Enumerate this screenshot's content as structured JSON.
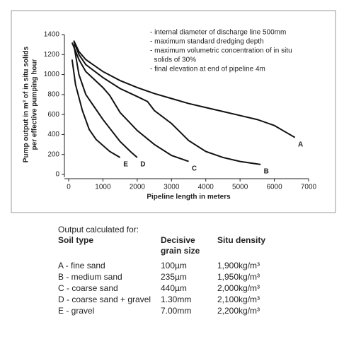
{
  "chart_data": {
    "type": "line",
    "ylabel": [
      "Pump output in m³ of in situ solids",
      "per effective pumping hour"
    ],
    "xlabel": "Pipeline length in meters",
    "notes": [
      "- internal diameter of discharge line 500mm",
      "- maximum standard dredging depth",
      "- maximum volumetric concentration of in situ",
      "  solids of 30%",
      "- final elevation at end of pipeline 4m"
    ],
    "xlim": [
      0,
      7000
    ],
    "xticks": [
      0,
      1000,
      2000,
      3000,
      4000,
      5000,
      6000,
      7000
    ],
    "ylim": [
      0,
      1400
    ],
    "yticks": [
      0,
      200,
      400,
      600,
      800,
      1000,
      1200,
      1400
    ],
    "series": [
      {
        "name": "A",
        "color": "#111111",
        "x": [
          150,
          300,
          500,
          1000,
          1500,
          2000,
          2500,
          3000,
          3500,
          4000,
          4500,
          5000,
          5500,
          6000,
          6300,
          6600
        ],
        "values": [
          1340,
          1230,
          1150,
          1030,
          940,
          870,
          810,
          760,
          710,
          670,
          630,
          590,
          550,
          490,
          430,
          370
        ]
      },
      {
        "name": "B",
        "color": "#111111",
        "x": [
          150,
          300,
          500,
          1000,
          1500,
          2000,
          2300,
          2500,
          3000,
          3500,
          4000,
          4500,
          5000,
          5600
        ],
        "values": [
          1330,
          1200,
          1100,
          970,
          860,
          780,
          730,
          640,
          510,
          340,
          230,
          170,
          130,
          100
        ]
      },
      {
        "name": "C",
        "color": "#111111",
        "x": [
          100,
          300,
          500,
          1000,
          1200,
          1500,
          2000,
          2500,
          3000,
          3500
        ],
        "values": [
          1320,
          1150,
          1030,
          870,
          790,
          620,
          440,
          300,
          190,
          130
        ]
      },
      {
        "name": "D",
        "color": "#111111",
        "x": [
          150,
          300,
          500,
          1000,
          1500,
          1800,
          2000
        ],
        "values": [
          1300,
          1000,
          800,
          550,
          330,
          230,
          170
        ]
      },
      {
        "name": "E",
        "color": "#111111",
        "x": [
          100,
          200,
          400,
          600,
          800,
          1200,
          1500
        ],
        "values": [
          1150,
          900,
          640,
          450,
          350,
          230,
          170
        ]
      }
    ]
  },
  "table": {
    "caption": "Output calculated for:",
    "header": [
      "Soil type",
      "Decisive grain size",
      "Situ density"
    ],
    "rows": [
      [
        "A - fine sand",
        "100µm",
        "1,900kg/m³"
      ],
      [
        "B - medium sand",
        "235µm",
        "1,950kg/m³"
      ],
      [
        "C - coarse sand",
        "440µm",
        "2,000kg/m³"
      ],
      [
        "D - coarse sand + gravel",
        "1.30mm",
        "2,100kg/m³"
      ],
      [
        "E - gravel",
        "7.00mm",
        "2,200kg/m³"
      ]
    ]
  }
}
